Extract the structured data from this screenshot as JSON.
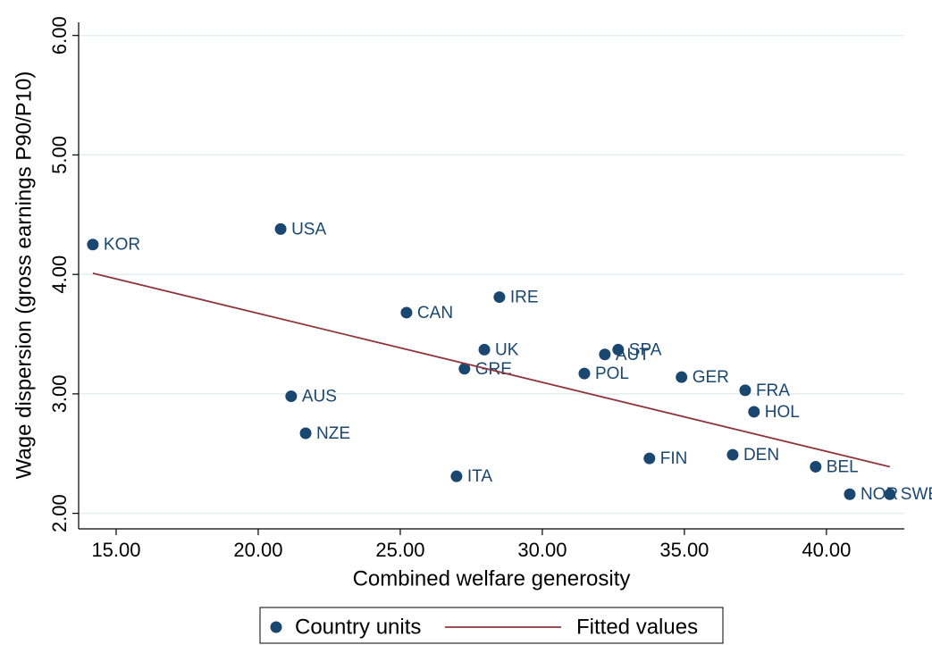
{
  "chart_data": {
    "type": "scatter",
    "x_label": "Combined welfare generosity",
    "y_label": "Wage dispersion (gross earnings P90/P10)",
    "xlim": [
      13.68,
      42.74
    ],
    "ylim": [
      1.87,
      6.11
    ],
    "xticks": [
      {
        "value": 15,
        "label": "15.00"
      },
      {
        "value": 20,
        "label": "20.00"
      },
      {
        "value": 25,
        "label": "25.00"
      },
      {
        "value": 30,
        "label": "30.00"
      },
      {
        "value": 35,
        "label": "35.00"
      },
      {
        "value": 40,
        "label": "40.00"
      }
    ],
    "yticks": [
      {
        "value": 2,
        "label": "2.00"
      },
      {
        "value": 3,
        "label": "3.00"
      },
      {
        "value": 4,
        "label": "4.00"
      },
      {
        "value": 5,
        "label": "5.00"
      },
      {
        "value": 6,
        "label": "6.00"
      }
    ],
    "grid": true,
    "legend": "bottom",
    "series": [
      {
        "name": "Country units",
        "color": "#1a476f",
        "kind": "points",
        "labels": [
          "KOR",
          "USA",
          "CAN",
          "IRE",
          "UK",
          "GRE",
          "ITA",
          "AUS",
          "NZE",
          "POL",
          "AUT",
          "SPA",
          "GER",
          "FRA",
          "HOL",
          "FIN",
          "DEN",
          "BEL",
          "NOR",
          "SWE"
        ],
        "x": [
          14.18,
          20.79,
          25.22,
          28.49,
          27.96,
          27.26,
          26.98,
          21.16,
          21.67,
          31.48,
          32.2,
          32.67,
          34.9,
          37.14,
          37.45,
          33.77,
          36.7,
          39.62,
          40.82,
          42.23
        ],
        "values": [
          4.25,
          4.38,
          3.68,
          3.81,
          3.37,
          3.21,
          2.31,
          2.98,
          2.67,
          3.17,
          3.33,
          3.37,
          3.14,
          3.03,
          2.85,
          2.46,
          2.49,
          2.39,
          2.16,
          2.16
        ]
      },
      {
        "name": "Fitted values",
        "color": "#90353b",
        "kind": "line",
        "x": [
          14.18,
          42.23
        ],
        "values": [
          4.01,
          2.39
        ]
      }
    ]
  }
}
